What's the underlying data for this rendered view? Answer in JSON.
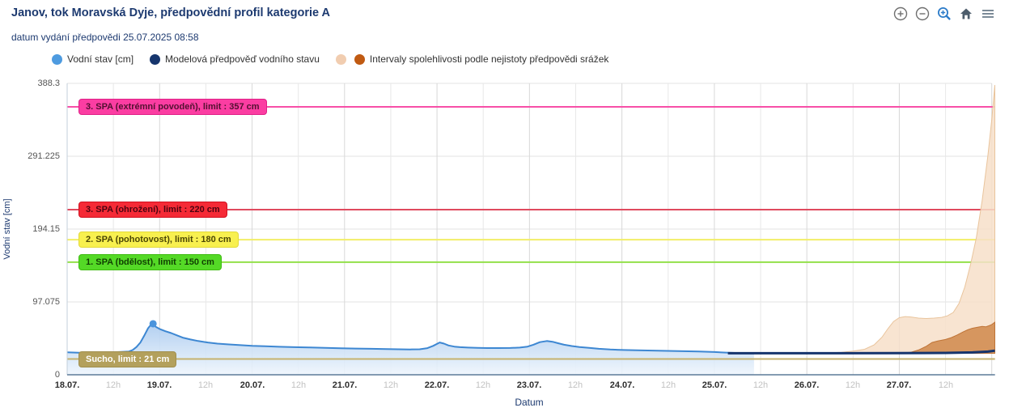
{
  "header": {
    "title": "Janov, tok Moravská Dyje, předpovědní profil kategorie A",
    "subtitle": "datum vydání předpovědi 25.07.2025 08:58",
    "toolbar": {
      "zoom_in": "zoom-in",
      "zoom_out": "zoom-out",
      "zoom_select": "zoom-selection",
      "home": "home",
      "menu": "menu"
    }
  },
  "legend": {
    "items": [
      {
        "label": "Vodní stav [cm]",
        "dots": [
          "#4e9be0"
        ]
      },
      {
        "label": "Modelová předpověď vodního stavu",
        "dots": [
          "#16356d"
        ]
      },
      {
        "label": "Intervaly spolehlivosti podle nejistoty předpovědi srážek",
        "dots": [
          "#f1cdb0",
          "#c05a12"
        ]
      }
    ]
  },
  "chart_data": {
    "type": "area",
    "title": "Janov, tok Moravská Dyje, předpovědní profil kategorie A",
    "xlabel": "Datum",
    "ylabel": "Vodní stav [cm]",
    "ylim": [
      0,
      388.3
    ],
    "y_ticks": [
      0,
      97.075,
      194.15,
      291.225,
      388.3
    ],
    "y_tick_labels": [
      "0",
      "97.075",
      "194.15",
      "291.225",
      "388.3"
    ],
    "x_ticks": [
      {
        "label": "18.07.",
        "major": true
      },
      {
        "label": "12h",
        "major": false
      },
      {
        "label": "19.07.",
        "major": true
      },
      {
        "label": "12h",
        "major": false
      },
      {
        "label": "20.07.",
        "major": true
      },
      {
        "label": "12h",
        "major": false
      },
      {
        "label": "21.07.",
        "major": true
      },
      {
        "label": "12h",
        "major": false
      },
      {
        "label": "22.07.",
        "major": true
      },
      {
        "label": "12h",
        "major": false
      },
      {
        "label": "23.07.",
        "major": true
      },
      {
        "label": "12h",
        "major": false
      },
      {
        "label": "24.07.",
        "major": true
      },
      {
        "label": "12h",
        "major": false
      },
      {
        "label": "25.07.",
        "major": true
      },
      {
        "label": "12h",
        "major": false
      },
      {
        "label": "26.07.",
        "major": true
      },
      {
        "label": "12h",
        "major": false
      },
      {
        "label": "27.07.",
        "major": true
      },
      {
        "label": "12h",
        "major": false
      }
    ],
    "hours_per_tick": 12,
    "x_domain_hours": [
      0,
      240.8
    ],
    "grid": true,
    "legend_position": "top",
    "thresholds": [
      {
        "label": "3. SPA (extrémní povodeň), limit : 357 cm",
        "value": 357,
        "line": "#f74fa8",
        "chip_bg": "#fb3da2",
        "chip_border": "#e01f87",
        "chip_text": "#531031"
      },
      {
        "label": "3. SPA (ohrožení), limit : 220 cm",
        "value": 220,
        "line": "#e04a5e",
        "chip_bg": "#f52a36",
        "chip_border": "#d01020",
        "chip_text": "#4d0410"
      },
      {
        "label": "2. SPA (pohotovost), limit : 180 cm",
        "value": 180,
        "line": "#f2ee67",
        "chip_bg": "#f8f04f",
        "chip_border": "#e3da38",
        "chip_text": "#4b4605"
      },
      {
        "label": "1. SPA (bdělost), limit : 150 cm",
        "value": 150,
        "line": "#93e04a",
        "chip_bg": "#54d926",
        "chip_border": "#3fbb12",
        "chip_text": "#103f02"
      },
      {
        "label": "Sucho, limit : 21 cm",
        "value": 21,
        "line": "#c6b26e",
        "chip_bg": "#b3a05c",
        "chip_border": "#a18f4e",
        "chip_text": "#ffffff"
      }
    ],
    "series": [
      {
        "name": "Vodní stav [cm]",
        "type": "area",
        "line_color": "#3d87d2",
        "fill_top": "#aecdf0",
        "fill_bottom": "#eef5fc",
        "marker": [
          22.3,
          68
        ],
        "points": [
          [
            0,
            30
          ],
          [
            3,
            29.5
          ],
          [
            6,
            29.5
          ],
          [
            9,
            30
          ],
          [
            12,
            30
          ],
          [
            14,
            30.5
          ],
          [
            16,
            31
          ],
          [
            17,
            33
          ],
          [
            18,
            37
          ],
          [
            19,
            43
          ],
          [
            20,
            52
          ],
          [
            21,
            62
          ],
          [
            21.8,
            67
          ],
          [
            22.3,
            68
          ],
          [
            23,
            64
          ],
          [
            24,
            61
          ],
          [
            25.5,
            58
          ],
          [
            27,
            55.5
          ],
          [
            28.5,
            52.5
          ],
          [
            30,
            49.5
          ],
          [
            32,
            47
          ],
          [
            34,
            45
          ],
          [
            36.5,
            43
          ],
          [
            39,
            41.5
          ],
          [
            42,
            40.5
          ],
          [
            45,
            39.5
          ],
          [
            48,
            38.5
          ],
          [
            51.5,
            38
          ],
          [
            55,
            37.3
          ],
          [
            59,
            36.8
          ],
          [
            63,
            36.3
          ],
          [
            67,
            35.8
          ],
          [
            71,
            35.4
          ],
          [
            75,
            35
          ],
          [
            79,
            34.6
          ],
          [
            83,
            34.2
          ],
          [
            86,
            34
          ],
          [
            89,
            33.8
          ],
          [
            91.5,
            34
          ],
          [
            93.5,
            35.5
          ],
          [
            95,
            38.5
          ],
          [
            96.7,
            43
          ],
          [
            97.8,
            41.5
          ],
          [
            99,
            39
          ],
          [
            100.5,
            37.5
          ],
          [
            102,
            36.8
          ],
          [
            104,
            36.2
          ],
          [
            106.5,
            35.8
          ],
          [
            109,
            35.6
          ],
          [
            112,
            35.6
          ],
          [
            115,
            35.7
          ],
          [
            117.5,
            36.2
          ],
          [
            119.5,
            37.5
          ],
          [
            121,
            40
          ],
          [
            122.7,
            43.5
          ],
          [
            124.5,
            45
          ],
          [
            126,
            44
          ],
          [
            127.5,
            42
          ],
          [
            129,
            40
          ],
          [
            131,
            38.3
          ],
          [
            133,
            37
          ],
          [
            135.5,
            35.8
          ],
          [
            138,
            34.6
          ],
          [
            141,
            33.6
          ],
          [
            144.5,
            33
          ],
          [
            148,
            32.6
          ],
          [
            152,
            32.2
          ],
          [
            156,
            31.8
          ],
          [
            160,
            31.4
          ],
          [
            164,
            31
          ],
          [
            168,
            30.3
          ],
          [
            171,
            29.6
          ],
          [
            174,
            29
          ],
          [
            176.5,
            28.7
          ],
          [
            178.3,
            28.6
          ]
        ]
      },
      {
        "name": "Modelová předpověď vodního stavu",
        "type": "line",
        "line_color": "#16356d",
        "points": [
          [
            171.5,
            28.7
          ],
          [
            185,
            28.7
          ],
          [
            200,
            28.7
          ],
          [
            215,
            28.8
          ],
          [
            228,
            29.1
          ],
          [
            235,
            29.8
          ],
          [
            239,
            30.8
          ],
          [
            240.8,
            32
          ]
        ]
      },
      {
        "name": "Intervaly spolehlivosti podle nejistoty předpovědi srážek",
        "type": "band",
        "fill": "#f7dfc9",
        "stroke": "#e9c49c",
        "base": 28.6,
        "points": [
          [
            190,
            28.6
          ],
          [
            196,
            29
          ],
          [
            201,
            30
          ],
          [
            204,
            31.5
          ],
          [
            207,
            34
          ],
          [
            209.5,
            40
          ],
          [
            211.5,
            50
          ],
          [
            213,
            61
          ],
          [
            214.5,
            71
          ],
          [
            216,
            76
          ],
          [
            217.5,
            77.5
          ],
          [
            219,
            77
          ],
          [
            221,
            75.5
          ],
          [
            223,
            75
          ],
          [
            225,
            75.5
          ],
          [
            227,
            76.5
          ],
          [
            228.5,
            78.5
          ],
          [
            230,
            83
          ],
          [
            231.5,
            95
          ],
          [
            233,
            117
          ],
          [
            234.5,
            147
          ],
          [
            236,
            183
          ],
          [
            237.5,
            232
          ],
          [
            239,
            292
          ],
          [
            240,
            340
          ],
          [
            240.8,
            386
          ]
        ]
      },
      {
        "name": "Intervaly spolehlivosti podle nejistoty předpovědi srážek",
        "type": "band",
        "fill": "#d0884b",
        "stroke": "#bf7437",
        "base": 28.6,
        "points": [
          [
            216,
            28.6
          ],
          [
            219,
            30
          ],
          [
            221,
            33
          ],
          [
            223,
            38
          ],
          [
            224.5,
            43
          ],
          [
            226,
            45
          ],
          [
            228,
            47
          ],
          [
            229.5,
            49.5
          ],
          [
            231,
            53
          ],
          [
            232.5,
            57
          ],
          [
            233.8,
            60
          ],
          [
            235,
            62
          ],
          [
            236.5,
            63.5
          ],
          [
            237.5,
            64.5
          ],
          [
            238.5,
            64
          ],
          [
            239.3,
            65.5
          ],
          [
            240,
            67
          ],
          [
            240.8,
            70
          ]
        ]
      }
    ]
  },
  "colors": {
    "title": "#1d3a70",
    "grid_major": "#d8d8d8",
    "grid_minor": "#e8e8e8",
    "grid_horizontal": "#e3e3e3",
    "axis_bottom": "#5d7b99",
    "axis_left": "#c3cfdb",
    "icon_gray": "#6f6f6f",
    "icon_blue": "#2d7cc9",
    "icon_dark": "#4d5d6c"
  }
}
